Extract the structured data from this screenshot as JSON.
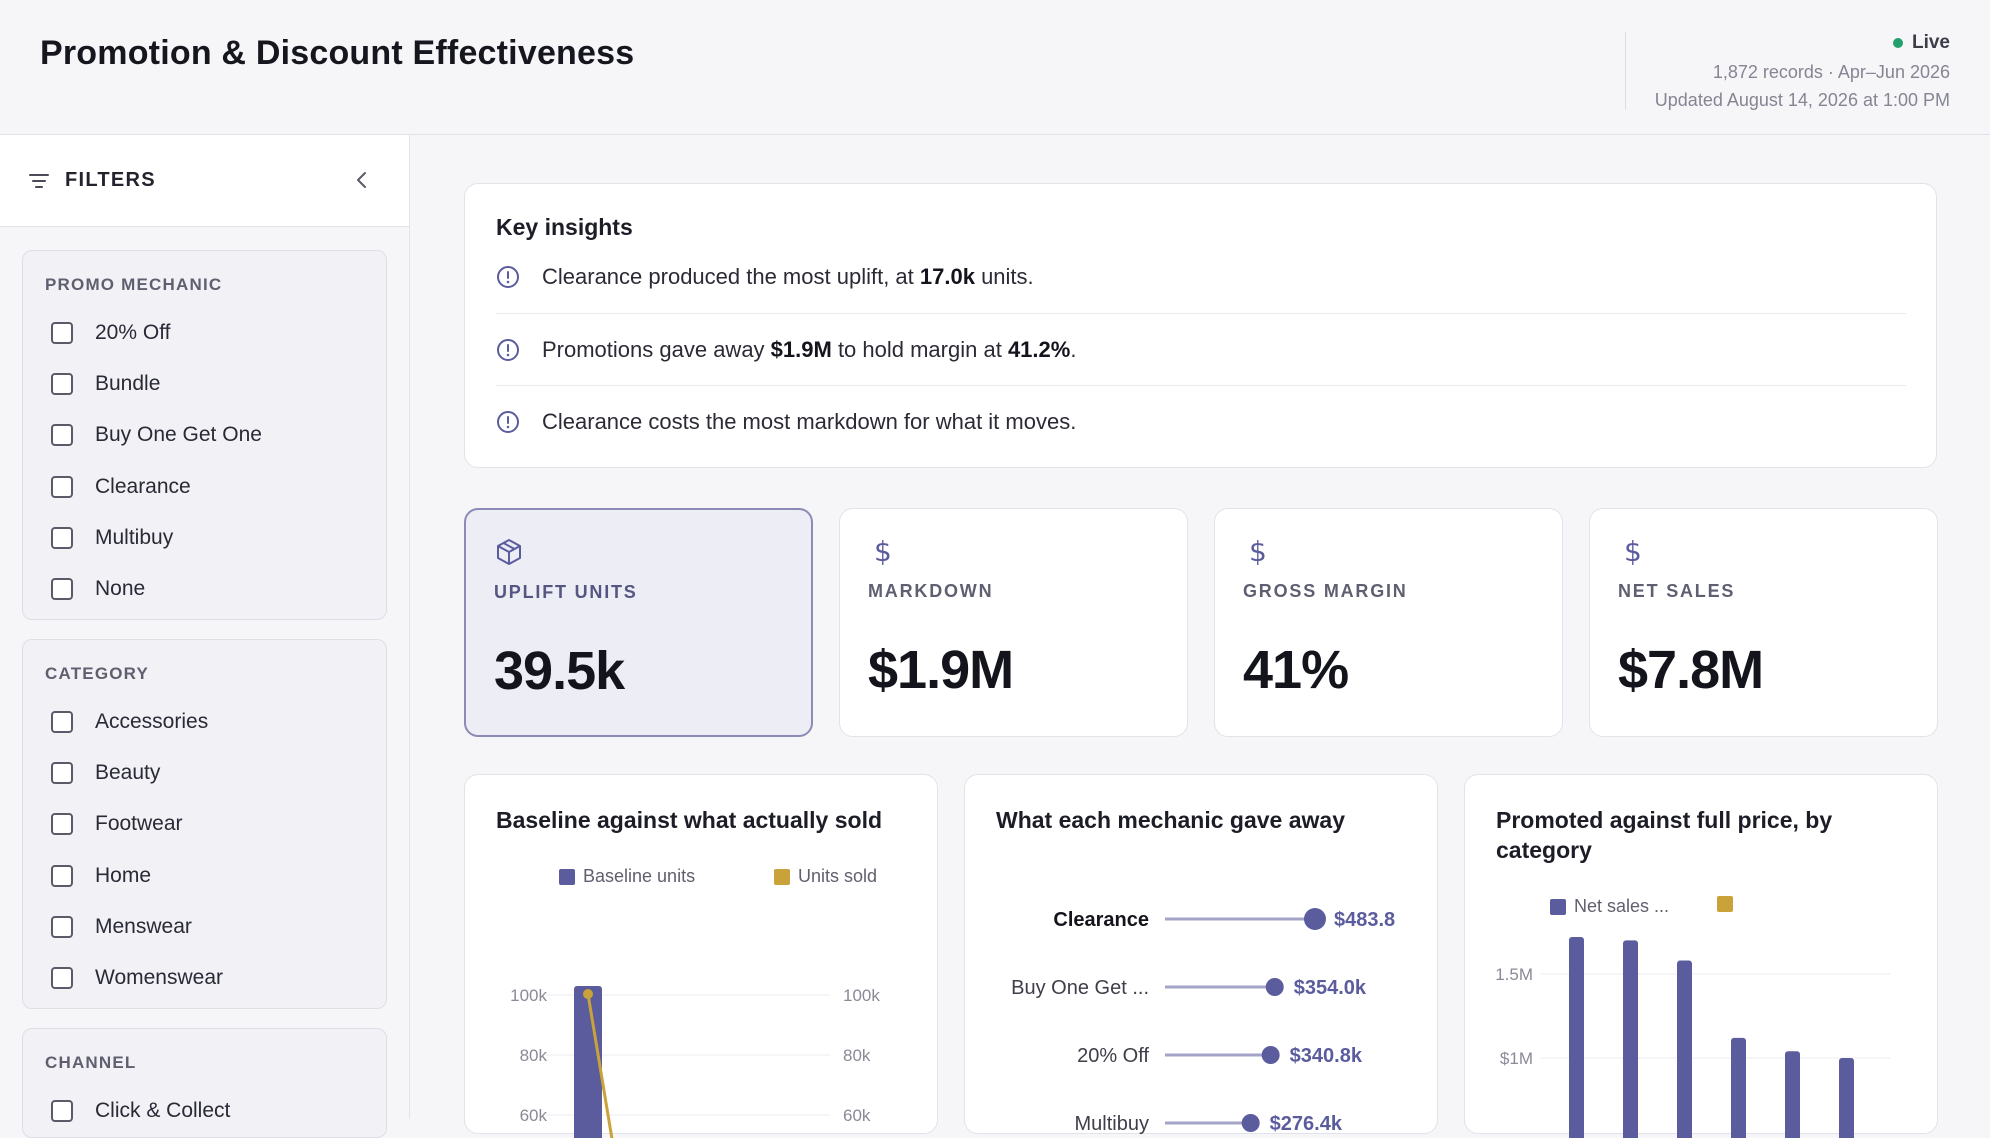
{
  "header": {
    "title": "Promotion & Discount Effectiveness",
    "status": "Live",
    "records": "1,872 records · Apr–Jun 2026",
    "updated": "Updated August 14, 2026 at 1:00 PM",
    "status_color": "#22a06b"
  },
  "sidebar": {
    "title": "FILTERS",
    "groups": [
      {
        "title": "PROMO MECHANIC",
        "options": [
          "20% Off",
          "Bundle",
          "Buy One Get One",
          "Clearance",
          "Multibuy",
          "None"
        ]
      },
      {
        "title": "CATEGORY",
        "options": [
          "Accessories",
          "Beauty",
          "Footwear",
          "Home",
          "Menswear",
          "Womenswear"
        ]
      },
      {
        "title": "CHANNEL",
        "options": [
          "Click & Collect"
        ]
      }
    ]
  },
  "insights": {
    "title": "Key insights",
    "rows": [
      {
        "pre": "Clearance produced the most uplift, at ",
        "b1": "17.0k",
        "mid": " units.",
        "b2": "",
        "post": ""
      },
      {
        "pre": "Promotions gave away ",
        "b1": "$1.9M",
        "mid": " to hold margin at ",
        "b2": "41.2%",
        "post": "."
      },
      {
        "pre": "Clearance costs the most markdown for what it moves.",
        "b1": "",
        "mid": "",
        "b2": "",
        "post": ""
      }
    ]
  },
  "kpis": [
    {
      "label": "UPLIFT UNITS",
      "value": "39.5k",
      "icon": "box-icon"
    },
    {
      "label": "MARKDOWN",
      "value": "$1.9M",
      "icon": "dollar-icon"
    },
    {
      "label": "GROSS MARGIN",
      "value": "41%",
      "icon": "dollar-icon"
    },
    {
      "label": "NET SALES",
      "value": "$7.8M",
      "icon": "dollar-icon"
    }
  ],
  "colors": {
    "primary": "#5b5c9e",
    "accent": "#c9a23a"
  },
  "chart_data": [
    {
      "type": "bar",
      "title": "Baseline against what actually sold",
      "series": [
        {
          "name": "Baseline units",
          "values": [
            103000
          ]
        },
        {
          "name": "Units sold",
          "values": [
            103000
          ]
        }
      ],
      "y_ticks": [
        "100k",
        "80k",
        "60k"
      ],
      "y_ticks_right": [
        "100k",
        "80k",
        "60k"
      ],
      "ylim": [
        0,
        110000
      ]
    },
    {
      "type": "dot",
      "title": "What each mechanic gave away",
      "categories": [
        "Clearance",
        "Buy One Get ...",
        "20% Off",
        "Multibuy"
      ],
      "values": [
        483.8,
        354.0,
        340.8,
        276.4
      ],
      "value_labels": [
        "$483.8",
        "$354.0k",
        "$340.8k",
        "$276.4k"
      ],
      "xlim": [
        0,
        500
      ]
    },
    {
      "type": "bar",
      "title": "Promoted against full price, by category",
      "series": [
        {
          "name": "Net sales ...",
          "values": [
            1720000,
            1700000,
            1580000,
            1120000,
            1040000,
            1000000
          ]
        },
        {
          "name": "",
          "values": []
        }
      ],
      "y_ticks": [
        "1.5M",
        "$1M"
      ],
      "ylim": [
        0,
        1900000
      ]
    }
  ]
}
